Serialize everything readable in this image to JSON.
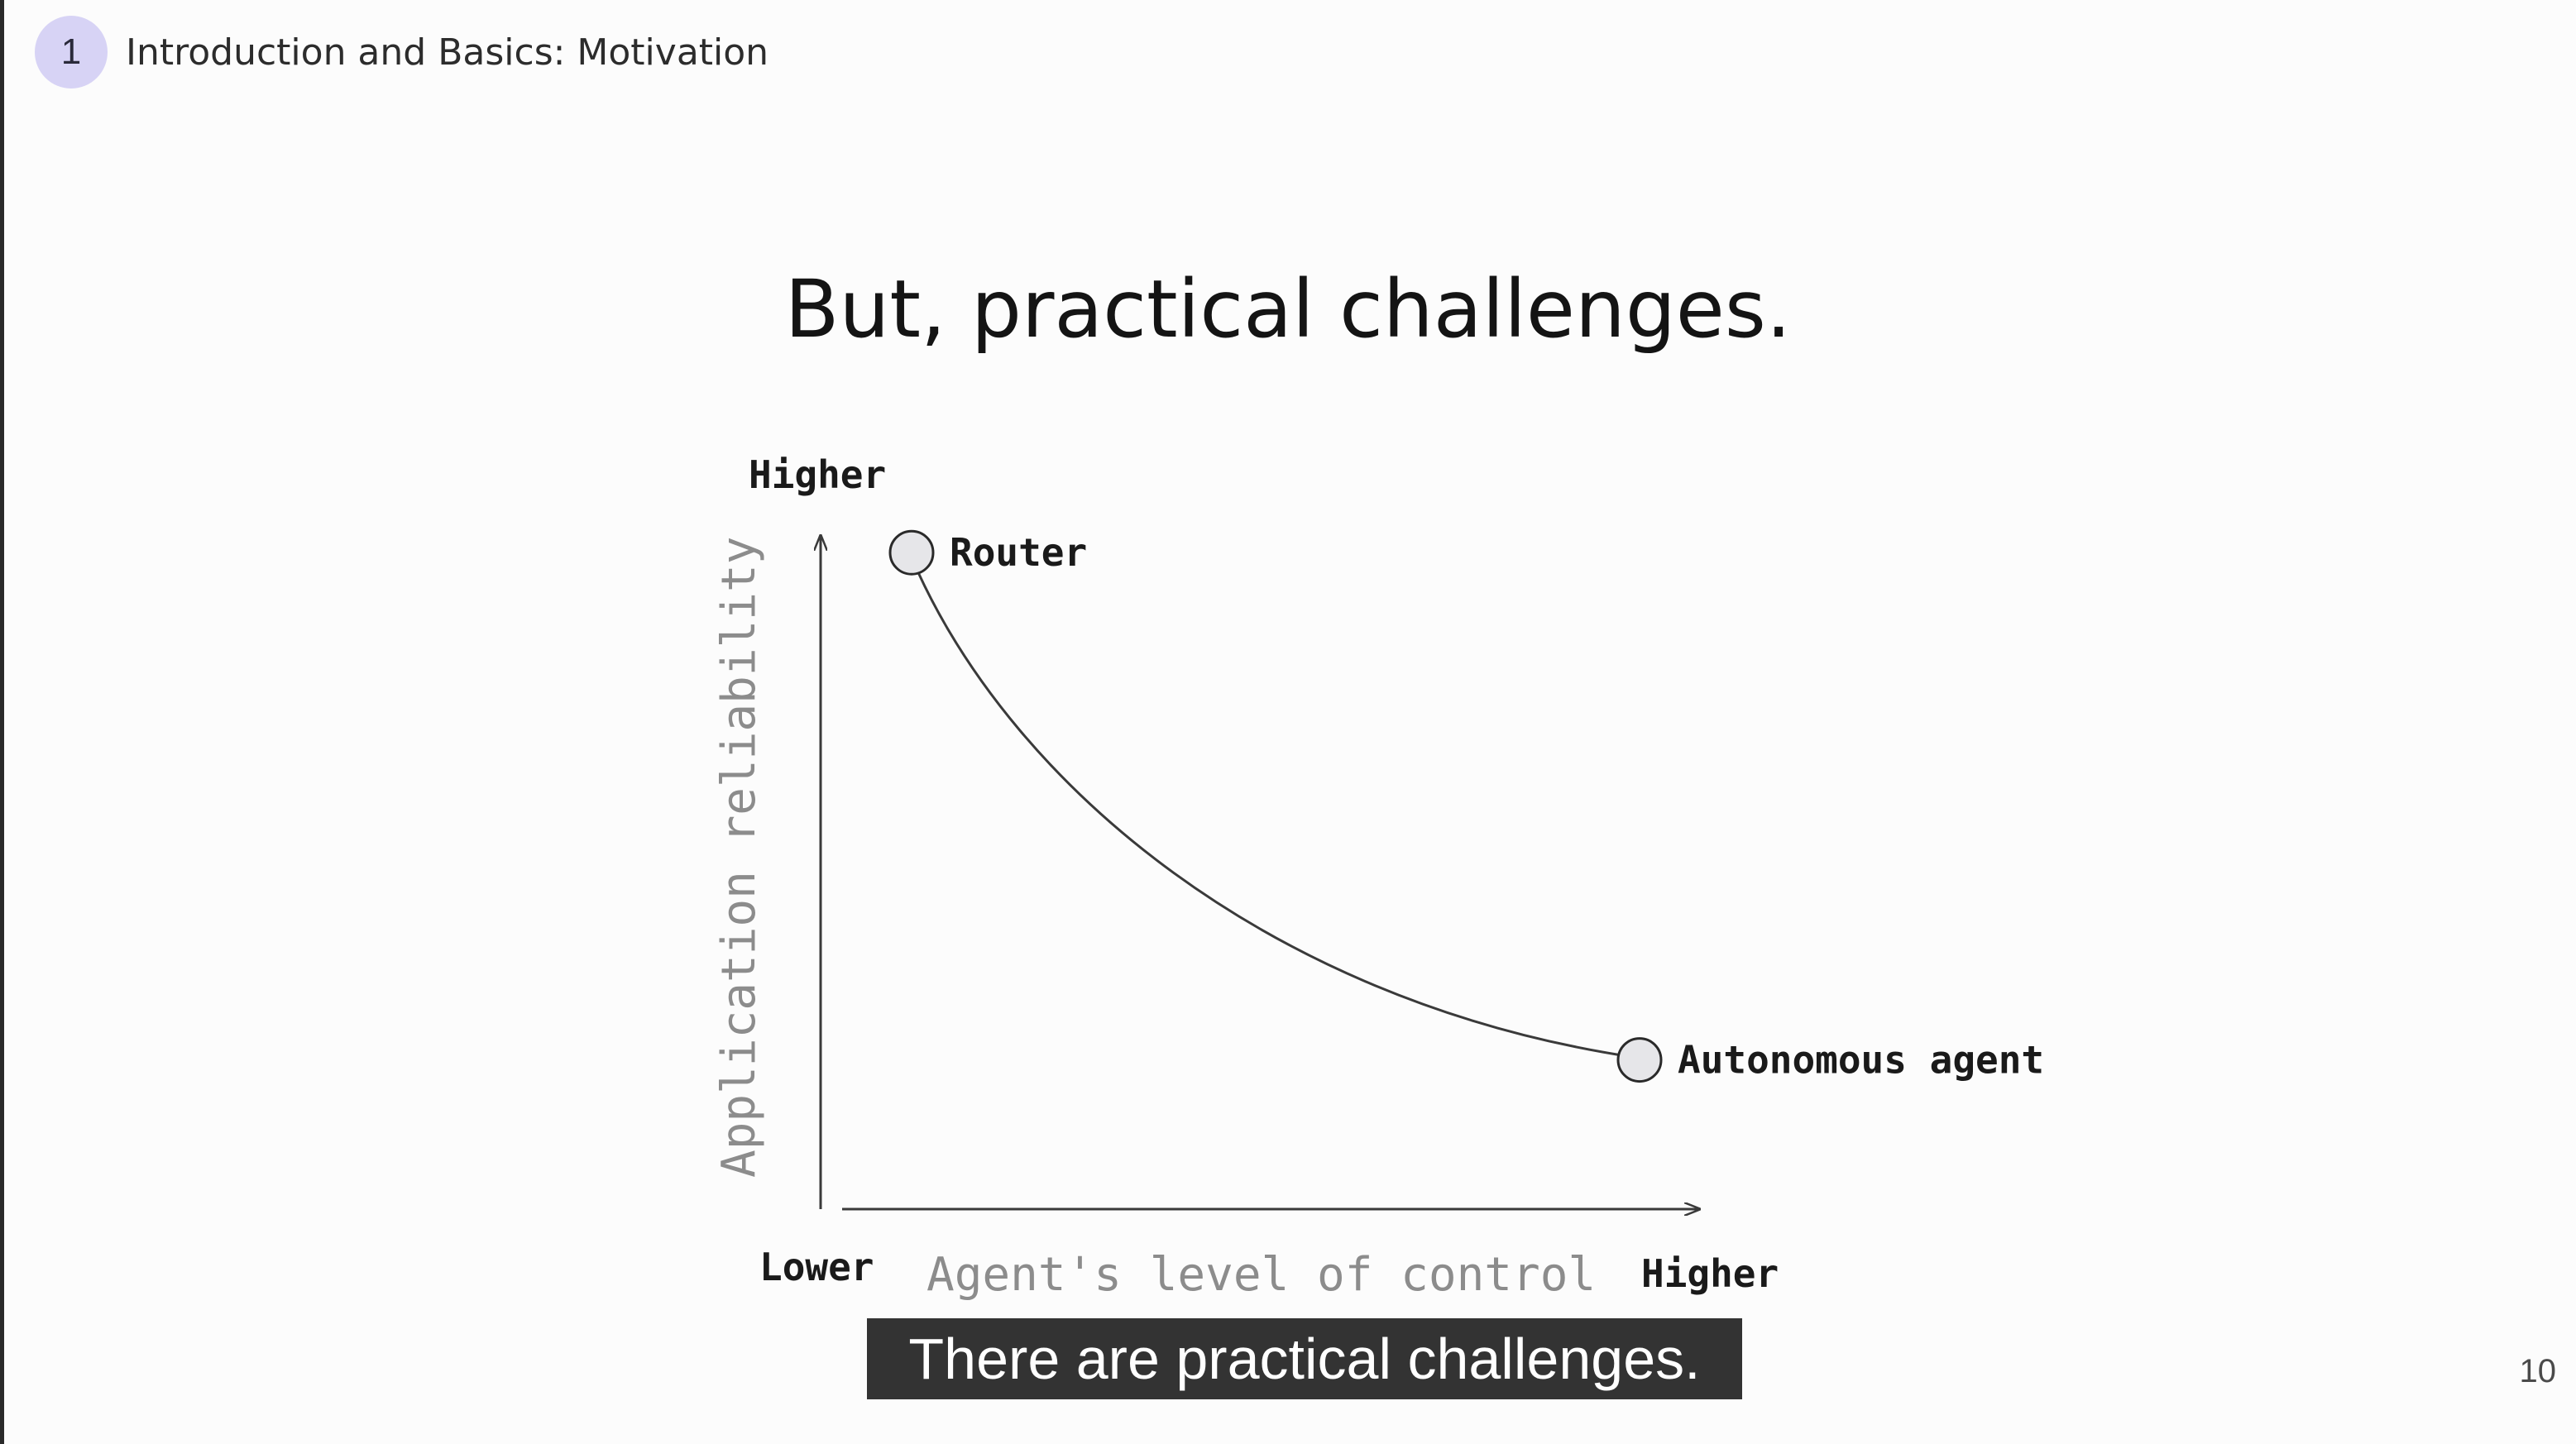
{
  "section": {
    "number": "1",
    "title": "Introduction and Basics: Motivation"
  },
  "slide": {
    "title": "But, practical challenges.",
    "page_number": "10"
  },
  "caption": "There are practical challenges.",
  "chart_data": {
    "type": "line",
    "ylabel": "Application reliability",
    "xlabel": "Agent's level of control",
    "y_top_label": "Higher",
    "x_min_label": "Lower",
    "x_max_label": "Higher",
    "x": [
      0.1,
      0.9
    ],
    "y": [
      0.88,
      0.2
    ],
    "points": [
      {
        "label": "Router",
        "x": 0.1,
        "y": 0.88
      },
      {
        "label": "Autonomous agent",
        "x": 0.9,
        "y": 0.2
      }
    ],
    "grid": false,
    "colors": {
      "curve": "#3a3a3a",
      "marker_fill": "#e6e6e9",
      "axis_label": "#8c8c8c"
    }
  }
}
